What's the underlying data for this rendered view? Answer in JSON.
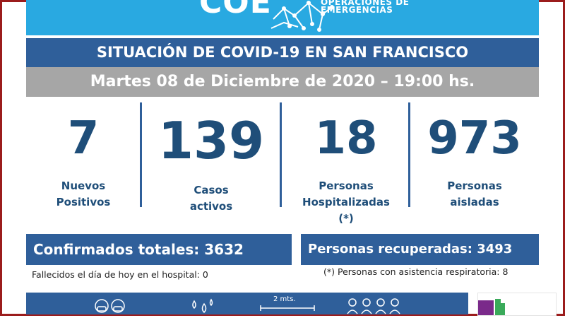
{
  "header": {
    "logo_text": "COE",
    "logo_sub_line1": "OPERACIONES DE",
    "logo_sub_line2": "EMERGENCIAS"
  },
  "title": "SITUACIÓN DE COVID-19 EN SAN FRANCISCO",
  "date_line": "Martes 08 de Diciembre de 2020 – 19:00 hs.",
  "stats": [
    {
      "value": "7",
      "label_line1": "Nuevos",
      "label_line2": "Positivos",
      "label_line3": ""
    },
    {
      "value": "139",
      "label_line1": "Casos",
      "label_line2": "activos",
      "label_line3": ""
    },
    {
      "value": "18",
      "label_line1": "Personas",
      "label_line2": "Hospitalizadas",
      "label_line3": "(*)"
    },
    {
      "value": "973",
      "label_line1": "Personas",
      "label_line2": "aisladas",
      "label_line3": ""
    }
  ],
  "confirmados": "Confirmados totales: 3632",
  "recuperadas": "Personas recuperadas: 3493",
  "fallecidos_note": "Fallecidos el día de hoy en el hospital: 0",
  "asistencia_note": "(*) Personas con asistencia respiratoria: 8",
  "bottom": {
    "distance_label": "2 mts.",
    "icons": [
      "people-masks-icon",
      "water-drops-icon",
      "distance-icon",
      "group-icon"
    ]
  },
  "colors": {
    "banner": "#29a9e1",
    "title_bar": "#2f5f9a",
    "date_bar": "#a6a6a6",
    "numbers": "#1f4e79",
    "frame": "#9b1c1c"
  }
}
